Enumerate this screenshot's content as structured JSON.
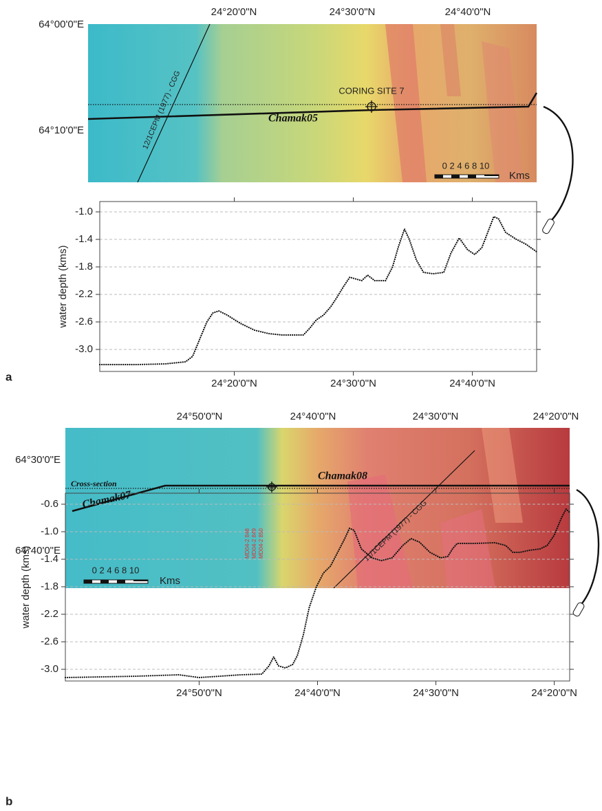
{
  "panel_labels": [
    "a",
    "b"
  ],
  "maps": [
    {
      "top_labels": [
        "24°20'0\"N",
        "24°30'0\"N",
        "24°40'0\"N"
      ],
      "left_labels": [
        "64°00'0\"E",
        "64°10'0\"E"
      ],
      "site_label": "CORING SITE 7",
      "line_labels": [
        "Chamak05",
        "12/1CEPM (1977) - CGG"
      ],
      "scale_numbers": "0 2 4 6 8 10",
      "scale_unit": "Kms"
    },
    {
      "top_labels": [
        "24°50'0\"N",
        "24°40'0\"N",
        "24°30'0\"N",
        "24°20'0\"N"
      ],
      "left_labels": [
        "64°30'0\"E",
        "64°40'0\"E"
      ],
      "section_label": "Cross-section",
      "line_labels": [
        "Chamak08",
        "Chamak07",
        "11/1CEPM (1977) - CGG"
      ],
      "core_labels": [
        "MD04-2 848",
        "MD04-2 849",
        "MD04-2 850"
      ],
      "scale_numbers": "0 2 4 6 8 10",
      "scale_unit": "Kms"
    }
  ],
  "chart_data": [
    {
      "type": "line",
      "y_label": "water depth (kms)",
      "color": "#111",
      "grid": true,
      "xlim": [
        8.7,
        45.4
      ],
      "xticks": [
        {
          "value": 20,
          "label": "24°20'0\"N"
        },
        {
          "value": 30,
          "label": "24°30'0\"N"
        },
        {
          "value": 40,
          "label": "24°40'0\"N"
        }
      ],
      "ylim": [
        -3.32,
        -0.85
      ],
      "yticks": [
        {
          "value": -1,
          "label": "-1.0"
        },
        -1.4,
        -1.8,
        -2.2,
        -2.6,
        {
          "value": -3,
          "label": "-3.0"
        }
      ],
      "x": [
        8.7,
        11.9,
        14.2,
        15.9,
        16.5,
        17.1,
        17.7,
        18.2,
        18.7,
        19.4,
        20.5,
        21.7,
        22.9,
        24.0,
        25.8,
        26.3,
        26.9,
        27.5,
        28.1,
        28.6,
        29.2,
        29.7,
        30.1,
        30.7,
        31.2,
        31.8,
        32.7,
        33.3,
        33.8,
        34.3,
        34.7,
        35.3,
        35.9,
        36.7,
        37.6,
        38.2,
        38.9,
        39.6,
        40.2,
        40.8,
        41.4,
        41.8,
        42.2,
        42.8,
        43.7,
        44.5,
        45.4
      ],
      "values": [
        -3.22,
        -3.22,
        -3.21,
        -3.18,
        -3.1,
        -2.85,
        -2.6,
        -2.47,
        -2.44,
        -2.5,
        -2.62,
        -2.72,
        -2.77,
        -2.79,
        -2.79,
        -2.7,
        -2.57,
        -2.5,
        -2.38,
        -2.25,
        -2.08,
        -1.95,
        -1.97,
        -2.0,
        -1.92,
        -2.0,
        -2.0,
        -1.8,
        -1.5,
        -1.25,
        -1.4,
        -1.7,
        -1.88,
        -1.9,
        -1.88,
        -1.6,
        -1.38,
        -1.55,
        -1.62,
        -1.52,
        -1.25,
        -1.07,
        -1.1,
        -1.3,
        -1.4,
        -1.47,
        -1.58
      ]
    },
    {
      "type": "line",
      "y_label": "water depth (kms)",
      "color": "#111",
      "grid": true,
      "xlim": [
        61.3,
        18.7
      ],
      "xticks": [
        {
          "value": 50,
          "label": "24°50'0\"N"
        },
        {
          "value": 40,
          "label": "24°40'0\"N"
        },
        {
          "value": 30,
          "label": "24°30'0\"N"
        },
        {
          "value": 20,
          "label": "24°20'0\"N"
        }
      ],
      "ylim": [
        -3.17,
        -0.44
      ],
      "yticks": [
        -0.6,
        {
          "value": -1,
          "label": "-1.0"
        },
        -1.4,
        -1.8,
        -2.2,
        -2.6,
        {
          "value": -3,
          "label": "-3.0"
        }
      ],
      "x": [
        61.3,
        58.1,
        55.2,
        51.7,
        50.0,
        48.2,
        46.5,
        44.7,
        44.1,
        43.7,
        43.3,
        42.7,
        42.1,
        41.7,
        41.2,
        40.7,
        40.1,
        39.5,
        38.9,
        38.3,
        37.7,
        37.3,
        36.9,
        36.3,
        35.4,
        34.6,
        33.7,
        32.8,
        32.1,
        31.4,
        30.5,
        29.6,
        29.0,
        28.6,
        28.2,
        26.7,
        25.0,
        24.1,
        23.5,
        22.9,
        22.1,
        21.2,
        20.6,
        20.0,
        19.4,
        19.0,
        18.7
      ],
      "values": [
        -3.12,
        -3.11,
        -3.1,
        -3.08,
        -3.12,
        -3.1,
        -3.08,
        -3.07,
        -2.95,
        -2.82,
        -2.95,
        -2.98,
        -2.93,
        -2.8,
        -2.5,
        -2.1,
        -1.8,
        -1.6,
        -1.5,
        -1.3,
        -1.1,
        -0.95,
        -0.98,
        -1.25,
        -1.38,
        -1.42,
        -1.38,
        -1.2,
        -1.1,
        -1.15,
        -1.3,
        -1.38,
        -1.36,
        -1.25,
        -1.17,
        -1.17,
        -1.16,
        -1.2,
        -1.3,
        -1.3,
        -1.27,
        -1.25,
        -1.2,
        -1.05,
        -0.8,
        -0.67,
        -0.72
      ]
    }
  ]
}
